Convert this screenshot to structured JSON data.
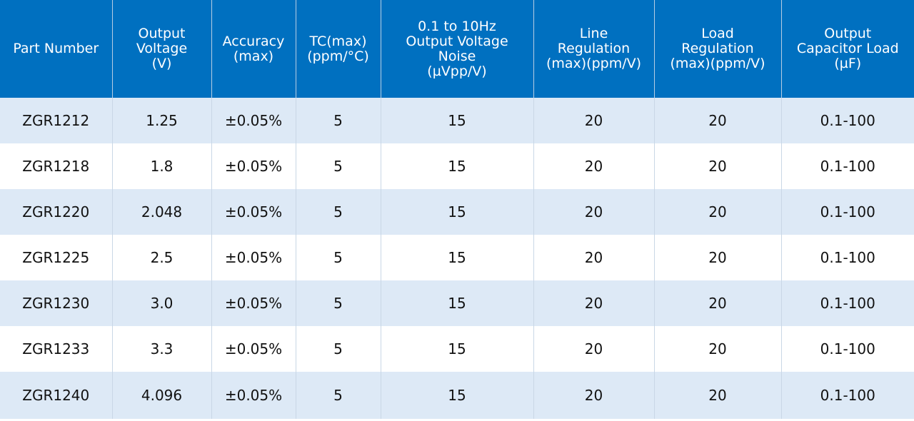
{
  "table": {
    "headers": [
      "Part Number",
      "Output\nVoltage\n(V)",
      "Accuracy\n(max)",
      "TC(max)\n(ppm/°C)",
      "0.1 to 10Hz\nOutput Voltage\nNoise\n(µVpp/V)",
      "Line\nRegulation\n(max)(ppm/V)",
      "Load\nRegulation\n(max)(ppm/V)",
      "Output\nCapacitor Load\n(µF)"
    ],
    "rows": [
      [
        "ZGR1212",
        "1.25",
        "±0.05%",
        "5",
        "15",
        "20",
        "20",
        "0.1-100"
      ],
      [
        "ZGR1218",
        "1.8",
        "±0.05%",
        "5",
        "15",
        "20",
        "20",
        "0.1-100"
      ],
      [
        "ZGR1220",
        "2.048",
        "±0.05%",
        "5",
        "15",
        "20",
        "20",
        "0.1-100"
      ],
      [
        "ZGR1225",
        "2.5",
        "±0.05%",
        "5",
        "15",
        "20",
        "20",
        "0.1-100"
      ],
      [
        "ZGR1230",
        "3.0",
        "±0.05%",
        "5",
        "15",
        "20",
        "20",
        "0.1-100"
      ],
      [
        "ZGR1233",
        "3.3",
        "±0.05%",
        "5",
        "15",
        "20",
        "20",
        "0.1-100"
      ],
      [
        "ZGR1240",
        "4.096",
        "±0.05%",
        "5",
        "15",
        "20",
        "20",
        "0.1-100"
      ]
    ]
  },
  "colors": {
    "header_bg": "#0070c0",
    "header_text": "#ffffff",
    "row_alt_bg": "#dde9f6",
    "row_bg": "#ffffff"
  }
}
